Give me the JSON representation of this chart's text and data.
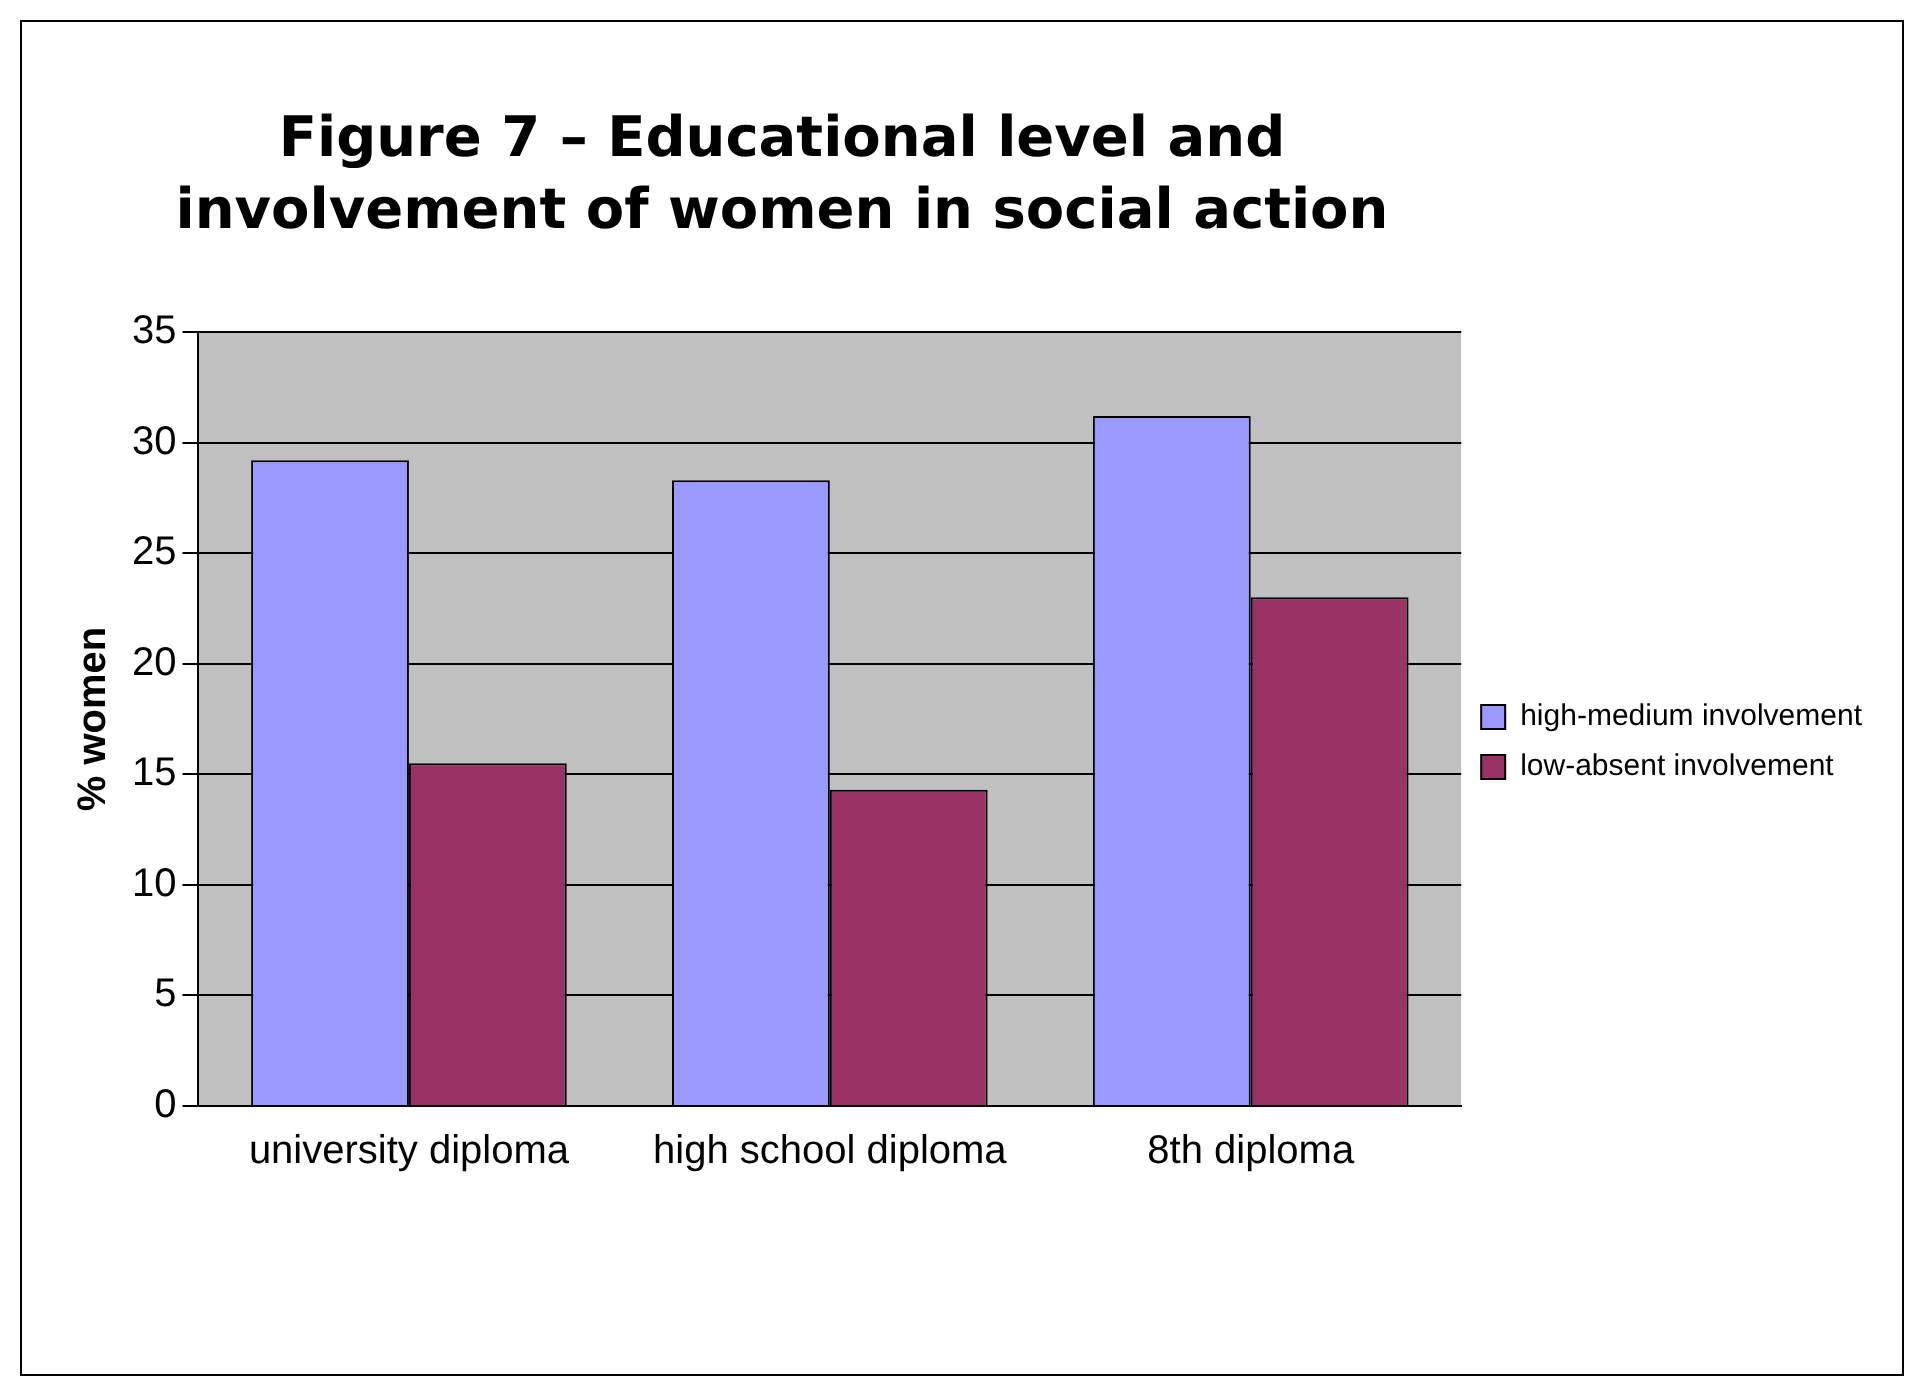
{
  "chart_data": {
    "type": "bar",
    "title": "Figure 7 – Educational level and involvement of women in social action",
    "ylabel": "% women",
    "categories": [
      "university diploma",
      "high school diploma",
      "8th diploma"
    ],
    "series": [
      {
        "name": "high-medium involvement",
        "color": "#9999ff",
        "values": [
          29.2,
          28.3,
          31.2
        ]
      },
      {
        "name": "low-absent involvement",
        "color": "#993366",
        "values": [
          15.5,
          14.3,
          23.0
        ]
      }
    ],
    "ylim": [
      0,
      35
    ],
    "yticks": [
      0,
      5,
      10,
      15,
      20,
      25,
      30,
      35
    ],
    "grid": "y",
    "legend": "right"
  }
}
